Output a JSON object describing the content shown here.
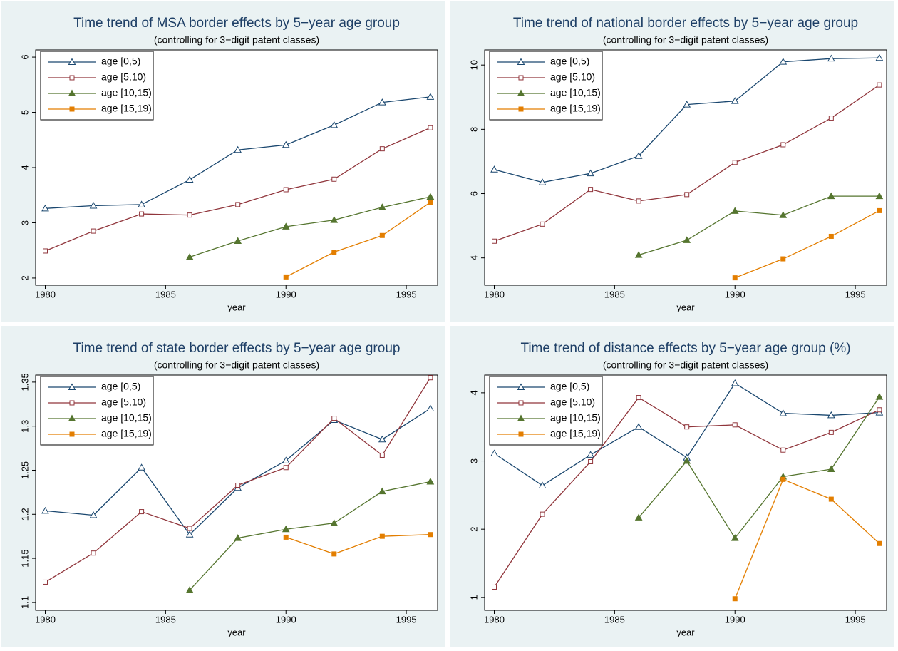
{
  "chart_data": [
    {
      "type": "line",
      "title": "Time trend of MSA border effects by 5−year age group",
      "subtitle": "(controlling for 3−digit patent classes)",
      "xlabel": "year",
      "x": [
        1980,
        1982,
        1984,
        1986,
        1988,
        1990,
        1992,
        1994,
        1996
      ],
      "xlim": [
        1979.6,
        1996.3
      ],
      "xticks": [
        1980,
        1985,
        1990,
        1995
      ],
      "ylim": [
        1.87,
        6.13
      ],
      "yticks": [
        2,
        3,
        4,
        5,
        6
      ],
      "series": [
        {
          "name": "age [0,5)",
          "color": "#1a476f",
          "marker": "triangle",
          "filled": false,
          "values": [
            3.26,
            3.31,
            3.33,
            3.78,
            4.32,
            4.41,
            4.77,
            5.18,
            5.28
          ]
        },
        {
          "name": "age [5,10)",
          "color": "#90353b",
          "marker": "square",
          "filled": false,
          "values": [
            2.49,
            2.85,
            3.16,
            3.14,
            3.33,
            3.6,
            3.79,
            4.34,
            4.72
          ]
        },
        {
          "name": "age [10,15)",
          "color": "#55752f",
          "marker": "triangle",
          "filled": true,
          "values": [
            null,
            null,
            null,
            2.38,
            2.67,
            2.93,
            3.05,
            3.28,
            3.47
          ]
        },
        {
          "name": "age [15,19)",
          "color": "#e37e00",
          "marker": "square",
          "filled": true,
          "values": [
            null,
            null,
            null,
            null,
            null,
            2.02,
            2.47,
            2.77,
            3.37
          ]
        }
      ]
    },
    {
      "type": "line",
      "title": "Time trend of national border effects by 5−year age group",
      "subtitle": "(controlling for 3−digit patent classes)",
      "xlabel": "year",
      "x": [
        1980,
        1982,
        1984,
        1986,
        1988,
        1990,
        1992,
        1994,
        1996
      ],
      "xlim": [
        1979.6,
        1996.3
      ],
      "xticks": [
        1980,
        1985,
        1990,
        1995
      ],
      "ylim": [
        3.15,
        10.47
      ],
      "yticks": [
        4,
        6,
        8,
        10
      ],
      "series": [
        {
          "name": "age [0,5)",
          "color": "#1a476f",
          "marker": "triangle",
          "filled": false,
          "values": [
            6.75,
            6.35,
            6.63,
            7.17,
            8.77,
            8.88,
            10.1,
            10.2,
            10.22
          ]
        },
        {
          "name": "age [5,10)",
          "color": "#90353b",
          "marker": "square",
          "filled": false,
          "values": [
            4.52,
            5.05,
            6.13,
            5.77,
            5.97,
            6.97,
            7.52,
            8.35,
            9.38
          ]
        },
        {
          "name": "age [10,15)",
          "color": "#55752f",
          "marker": "triangle",
          "filled": true,
          "values": [
            null,
            null,
            null,
            4.09,
            4.55,
            5.46,
            5.33,
            5.92,
            5.92
          ]
        },
        {
          "name": "age [15,19)",
          "color": "#e37e00",
          "marker": "square",
          "filled": true,
          "values": [
            null,
            null,
            null,
            null,
            null,
            3.38,
            3.97,
            4.67,
            5.47
          ]
        }
      ]
    },
    {
      "type": "line",
      "title": "Time trend of state border effects by 5−year age group",
      "subtitle": "(controlling for 3−digit patent classes)",
      "xlabel": "year",
      "x": [
        1980,
        1982,
        1984,
        1986,
        1988,
        1990,
        1992,
        1994,
        1996
      ],
      "xlim": [
        1979.6,
        1996.3
      ],
      "xticks": [
        1980,
        1985,
        1990,
        1995
      ],
      "ylim": [
        1.091,
        1.358
      ],
      "yticks": [
        1.1,
        1.15,
        1.2,
        1.25,
        1.3,
        1.35
      ],
      "series": [
        {
          "name": "age [0,5)",
          "color": "#1a476f",
          "marker": "triangle",
          "filled": false,
          "values": [
            1.204,
            1.199,
            1.253,
            1.177,
            1.23,
            1.261,
            1.307,
            1.285,
            1.32
          ]
        },
        {
          "name": "age [5,10)",
          "color": "#90353b",
          "marker": "square",
          "filled": false,
          "values": [
            1.123,
            1.156,
            1.203,
            1.184,
            1.233,
            1.253,
            1.309,
            1.267,
            1.355
          ]
        },
        {
          "name": "age [10,15)",
          "color": "#55752f",
          "marker": "triangle",
          "filled": true,
          "values": [
            null,
            null,
            null,
            1.114,
            1.173,
            1.183,
            1.19,
            1.226,
            1.237
          ]
        },
        {
          "name": "age [15,19)",
          "color": "#e37e00",
          "marker": "square",
          "filled": true,
          "values": [
            null,
            null,
            null,
            null,
            null,
            1.174,
            1.155,
            1.175,
            1.177
          ]
        }
      ]
    },
    {
      "type": "line",
      "title": "Time trend of distance effects by 5−year age group (%)",
      "subtitle": "(controlling for 3−digit patent classes)",
      "xlabel": "year",
      "x": [
        1980,
        1982,
        1984,
        1986,
        1988,
        1990,
        1992,
        1994,
        1996
      ],
      "xlim": [
        1979.6,
        1996.3
      ],
      "xticks": [
        1980,
        1985,
        1990,
        1995
      ],
      "ylim": [
        0.81,
        4.26
      ],
      "yticks": [
        1,
        2,
        3,
        4
      ],
      "series": [
        {
          "name": "age [0,5)",
          "color": "#1a476f",
          "marker": "triangle",
          "filled": false,
          "values": [
            3.11,
            2.64,
            3.09,
            3.5,
            3.05,
            4.14,
            3.7,
            3.67,
            3.71
          ]
        },
        {
          "name": "age [5,10)",
          "color": "#90353b",
          "marker": "square",
          "filled": false,
          "values": [
            1.15,
            2.22,
            2.99,
            3.93,
            3.5,
            3.53,
            3.16,
            3.42,
            3.75
          ]
        },
        {
          "name": "age [10,15)",
          "color": "#55752f",
          "marker": "triangle",
          "filled": true,
          "values": [
            null,
            null,
            null,
            2.17,
            3.0,
            1.87,
            2.77,
            2.88,
            3.94
          ]
        },
        {
          "name": "age [15,19)",
          "color": "#e37e00",
          "marker": "square",
          "filled": true,
          "values": [
            null,
            null,
            null,
            null,
            null,
            0.98,
            2.73,
            2.44,
            1.79
          ]
        }
      ]
    }
  ]
}
